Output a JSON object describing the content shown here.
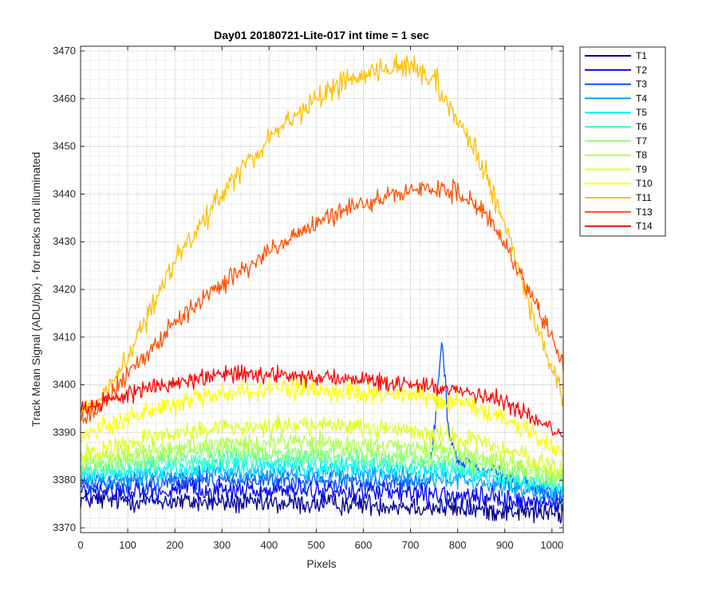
{
  "chart_data": {
    "type": "line",
    "title": "Day01 20180721-Lite-017 int time = 1 sec",
    "xlabel": "Pixels",
    "ylabel": "Track Mean Signal (ADU/pix) - for tracks not illuminated",
    "xlim": [
      0,
      1024
    ],
    "ylim": [
      3369,
      3471
    ],
    "xticks": [
      0,
      100,
      200,
      300,
      400,
      500,
      600,
      700,
      800,
      900,
      1000
    ],
    "yticks": [
      3370,
      3380,
      3390,
      3400,
      3410,
      3420,
      3430,
      3440,
      3450,
      3460,
      3470
    ],
    "grid": true,
    "minor_grid": true,
    "legend_position": "outside-top-right",
    "series": [
      {
        "name": "T1",
        "color": "#00008f",
        "keypoints": [
          [
            0,
            3376
          ],
          [
            200,
            3375.5
          ],
          [
            400,
            3375
          ],
          [
            600,
            3375
          ],
          [
            800,
            3374
          ],
          [
            1024,
            3373
          ]
        ],
        "noise": 2.2
      },
      {
        "name": "T2",
        "color": "#0000ff",
        "keypoints": [
          [
            0,
            3377.5
          ],
          [
            300,
            3378
          ],
          [
            600,
            3377.5
          ],
          [
            800,
            3376.5
          ],
          [
            1024,
            3375
          ]
        ],
        "noise": 2.2
      },
      {
        "name": "T3",
        "color": "#0050ff",
        "keypoints": [
          [
            0,
            3379
          ],
          [
            300,
            3380
          ],
          [
            600,
            3379.5
          ],
          [
            740,
            3379.5
          ],
          [
            752,
            3392
          ],
          [
            760,
            3402
          ],
          [
            767,
            3410
          ],
          [
            775,
            3398
          ],
          [
            785,
            3388
          ],
          [
            800,
            3384
          ],
          [
            1024,
            3376
          ]
        ],
        "noise": 2.0
      },
      {
        "name": "T4",
        "color": "#009fff",
        "keypoints": [
          [
            0,
            3380
          ],
          [
            300,
            3381.5
          ],
          [
            600,
            3381
          ],
          [
            800,
            3380
          ],
          [
            1024,
            3377
          ]
        ],
        "noise": 2.0
      },
      {
        "name": "T5",
        "color": "#00efff",
        "keypoints": [
          [
            0,
            3381
          ],
          [
            300,
            3383
          ],
          [
            600,
            3382.5
          ],
          [
            800,
            3381.5
          ],
          [
            1024,
            3378
          ]
        ],
        "noise": 2.0
      },
      {
        "name": "T6",
        "color": "#40ffbf",
        "keypoints": [
          [
            0,
            3382
          ],
          [
            300,
            3384.5
          ],
          [
            600,
            3384
          ],
          [
            800,
            3383
          ],
          [
            1024,
            3379
          ]
        ],
        "noise": 2.0
      },
      {
        "name": "T7",
        "color": "#8fff70",
        "keypoints": [
          [
            0,
            3383
          ],
          [
            300,
            3386
          ],
          [
            600,
            3385.5
          ],
          [
            800,
            3384.5
          ],
          [
            1024,
            3380
          ]
        ],
        "noise": 2.0
      },
      {
        "name": "T8",
        "color": "#b0ff50",
        "keypoints": [
          [
            0,
            3384
          ],
          [
            300,
            3388
          ],
          [
            600,
            3387.5
          ],
          [
            800,
            3386
          ],
          [
            1024,
            3381
          ]
        ],
        "noise": 2.0
      },
      {
        "name": "T9",
        "color": "#dfff20",
        "keypoints": [
          [
            0,
            3385
          ],
          [
            150,
            3389
          ],
          [
            300,
            3391
          ],
          [
            500,
            3391.5
          ],
          [
            700,
            3390.5
          ],
          [
            850,
            3388
          ],
          [
            1024,
            3382
          ]
        ],
        "noise": 2.0
      },
      {
        "name": "T10",
        "color": "#ffff00",
        "keypoints": [
          [
            0,
            3389
          ],
          [
            100,
            3393
          ],
          [
            200,
            3396
          ],
          [
            300,
            3398
          ],
          [
            400,
            3399
          ],
          [
            500,
            3399
          ],
          [
            600,
            3398.5
          ],
          [
            700,
            3398
          ],
          [
            800,
            3396.5
          ],
          [
            900,
            3393
          ],
          [
            1024,
            3386
          ]
        ],
        "noise": 2.2
      },
      {
        "name": "T11",
        "color": "#ffbf00",
        "keypoints": [
          [
            0,
            3394
          ],
          [
            50,
            3398
          ],
          [
            100,
            3406
          ],
          [
            200,
            3426
          ],
          [
            300,
            3440
          ],
          [
            400,
            3452
          ],
          [
            500,
            3460
          ],
          [
            600,
            3465.5
          ],
          [
            700,
            3467
          ],
          [
            750,
            3464
          ],
          [
            800,
            3456
          ],
          [
            850,
            3446
          ],
          [
            900,
            3434
          ],
          [
            950,
            3417
          ],
          [
            1000,
            3403
          ],
          [
            1024,
            3397
          ]
        ],
        "noise": 2.4
      },
      {
        "name": "T13",
        "color": "#ff5000",
        "keypoints": [
          [
            0,
            3393
          ],
          [
            50,
            3396
          ],
          [
            100,
            3402
          ],
          [
            200,
            3413
          ],
          [
            300,
            3421
          ],
          [
            400,
            3428
          ],
          [
            500,
            3434
          ],
          [
            600,
            3438
          ],
          [
            700,
            3441
          ],
          [
            780,
            3441
          ],
          [
            850,
            3437
          ],
          [
            900,
            3430
          ],
          [
            950,
            3420
          ],
          [
            1000,
            3410
          ],
          [
            1024,
            3404
          ]
        ],
        "noise": 2.0
      },
      {
        "name": "T14",
        "color": "#ff0000",
        "keypoints": [
          [
            0,
            3395
          ],
          [
            100,
            3398
          ],
          [
            200,
            3400.5
          ],
          [
            300,
            3402
          ],
          [
            400,
            3402
          ],
          [
            500,
            3401.5
          ],
          [
            600,
            3401
          ],
          [
            700,
            3400
          ],
          [
            800,
            3399
          ],
          [
            900,
            3396.5
          ],
          [
            1024,
            3390
          ]
        ],
        "noise": 1.8
      }
    ]
  }
}
